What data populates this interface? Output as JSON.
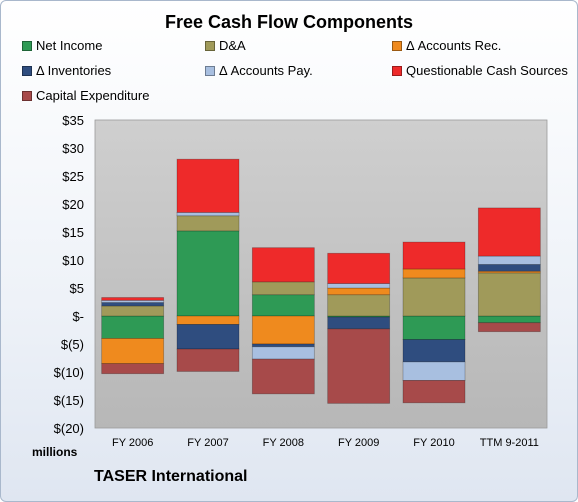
{
  "chart_data": {
    "type": "bar",
    "title": "Free Cash Flow Components",
    "categories": [
      "FY 2006",
      "FY 2007",
      "FY 2008",
      "FY 2009",
      "FY 2010",
      "TTM 9-2011"
    ],
    "ylabel": "millions",
    "ylim": [
      -20,
      35
    ],
    "yticks": [
      35,
      30,
      25,
      20,
      15,
      10,
      5,
      0,
      -5,
      -10,
      -15,
      -20
    ],
    "ytick_labels": [
      "$35",
      "$30",
      "$25",
      "$20",
      "$15",
      "$10",
      "$5",
      "$-",
      "$(5)",
      "$(10)",
      "$(15)",
      "$(20)"
    ],
    "grid": false,
    "legend_position": "top",
    "stacked": true,
    "series": [
      {
        "name": "Net Income",
        "color": "#2e9a55",
        "values": [
          -4.0,
          15.2,
          3.8,
          -0.2,
          -4.2,
          -1.2
        ]
      },
      {
        "name": "D&A",
        "color": "#a09a5a",
        "values": [
          1.8,
          2.7,
          2.3,
          3.8,
          6.8,
          7.7
        ]
      },
      {
        "name": "Δ Accounts Rec.",
        "color": "#ef8a1e",
        "values": [
          -4.5,
          -1.5,
          -5.0,
          1.2,
          1.6,
          0.3
        ]
      },
      {
        "name": "Δ Inventories",
        "color": "#2f4d7f",
        "values": [
          0.6,
          -4.4,
          -0.5,
          -2.1,
          -4.0,
          1.2
        ]
      },
      {
        "name": "Δ Accounts Pay.",
        "color": "#a8bfe0",
        "values": [
          0.4,
          0.6,
          -2.2,
          0.8,
          -3.3,
          1.5
        ]
      },
      {
        "name": "Questionable Cash Sources",
        "color": "#ee2a2a",
        "values": [
          0.5,
          9.5,
          6.1,
          5.4,
          4.8,
          8.6
        ]
      },
      {
        "name": "Capital Expenditure",
        "color": "#a74a4a",
        "values": [
          -1.8,
          -4.0,
          -6.2,
          -13.3,
          -4.0,
          -1.6
        ]
      }
    ]
  },
  "footer": {
    "company": "TASER International"
  }
}
